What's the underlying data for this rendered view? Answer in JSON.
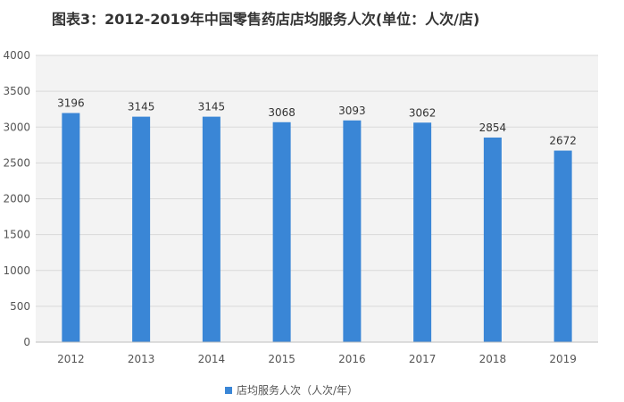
{
  "header": {
    "title": "图表3：2012-2019年中国零售药店店均服务人次(单位：人次/店)"
  },
  "legend": {
    "label": "店均服务人次（人次/年）"
  },
  "colors": {
    "bar": "#3a86d6",
    "grid": "#d9d9d9",
    "plot_bg": "#f3f3f3"
  },
  "chart_data": {
    "type": "bar",
    "categories": [
      "2012",
      "2013",
      "2014",
      "2015",
      "2016",
      "2017",
      "2018",
      "2019"
    ],
    "series": [
      {
        "name": "店均服务人次（人次/年）",
        "values": [
          3196,
          3145,
          3145,
          3068,
          3093,
          3062,
          2854,
          2672
        ]
      }
    ],
    "ylim": [
      0,
      4000
    ],
    "yticks": [
      0,
      500,
      1000,
      1500,
      2000,
      2500,
      3000,
      3500,
      4000
    ],
    "data_labels": true,
    "grid": true,
    "legend_position": "bottom"
  }
}
